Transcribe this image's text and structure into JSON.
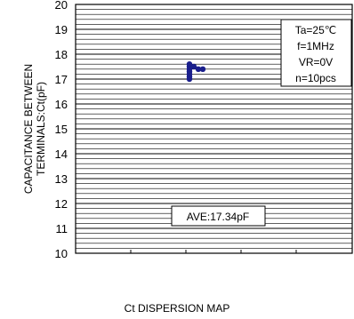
{
  "chart_data": {
    "type": "scatter",
    "title": "Ct DISPERSION MAP",
    "ylabel_line1": "CAPACITANCE BETWEEN",
    "ylabel_line2": "TERMINALS:Ct(pF)",
    "ylim": [
      10,
      20
    ],
    "yticks": [
      10,
      11,
      12,
      13,
      14,
      15,
      16,
      17,
      18,
      19,
      20
    ],
    "minor_grid_step": 0.2,
    "grid": true,
    "conditions": [
      "Ta=25℃",
      "f=1MHz",
      "VR=0V",
      "n=10pcs"
    ],
    "conditions_position": "top-right",
    "average_label": "AVE:17.34pF",
    "points": [
      {
        "x": 0,
        "y": 17.0
      },
      {
        "x": 0,
        "y": 17.1
      },
      {
        "x": 0,
        "y": 17.2
      },
      {
        "x": 0,
        "y": 17.3
      },
      {
        "x": 0,
        "y": 17.4
      },
      {
        "x": 0,
        "y": 17.5
      },
      {
        "x": 0,
        "y": 17.6
      },
      {
        "x": 1,
        "y": 17.5
      },
      {
        "x": 2,
        "y": 17.4
      },
      {
        "x": 3,
        "y": 17.4
      }
    ],
    "point_color": "#1a1f8c"
  }
}
